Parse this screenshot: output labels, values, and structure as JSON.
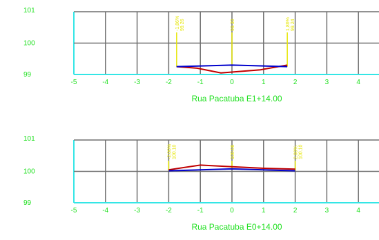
{
  "colors": {
    "grid": "#6f6f6f",
    "axis": "#34e6e6",
    "labels": "#1ee01e",
    "terrain": "#c00000",
    "design": "#0000cc",
    "markers": "#e6e600"
  },
  "sections": [
    {
      "title": "Rua Pacatuba E1+14.00",
      "x_ticks": [
        "-5",
        "-4",
        "-3",
        "-2",
        "-1",
        "0",
        "1",
        "2",
        "3",
        "4"
      ],
      "y_ticks": [
        "101",
        "100",
        "99"
      ],
      "marker_labels": [
        "-1,86%",
        "99.26",
        "99.30",
        "1,86%",
        "99.24"
      ],
      "terrain": [
        [
          -1.75,
          99.25
        ],
        [
          -1.1,
          99.2
        ],
        [
          -0.35,
          99.05
        ],
        [
          0.9,
          99.15
        ],
        [
          1.75,
          99.3
        ]
      ],
      "design": [
        [
          -1.75,
          99.25
        ],
        [
          0,
          99.3
        ],
        [
          1.75,
          99.25
        ]
      ],
      "marker_x": [
        -1.75,
        0,
        1.75
      ]
    },
    {
      "title": "Rua Pacatuba E0+14.00",
      "x_ticks": [
        "-5",
        "-4",
        "-3",
        "-2",
        "-1",
        "0",
        "1",
        "2",
        "3",
        "4"
      ],
      "y_ticks": [
        "101",
        "100",
        "99"
      ],
      "marker_labels": [
        "-2,00%",
        "100.10",
        "100.06",
        "2,00%",
        "100.10"
      ],
      "terrain": [
        [
          -2,
          100.05
        ],
        [
          -1,
          100.2
        ],
        [
          0,
          100.15
        ],
        [
          1,
          100.1
        ],
        [
          2,
          100.07
        ]
      ],
      "design": [
        [
          -2,
          100.02
        ],
        [
          0,
          100.08
        ],
        [
          2,
          100.02
        ]
      ],
      "marker_x": [
        -2,
        0,
        2
      ]
    }
  ]
}
